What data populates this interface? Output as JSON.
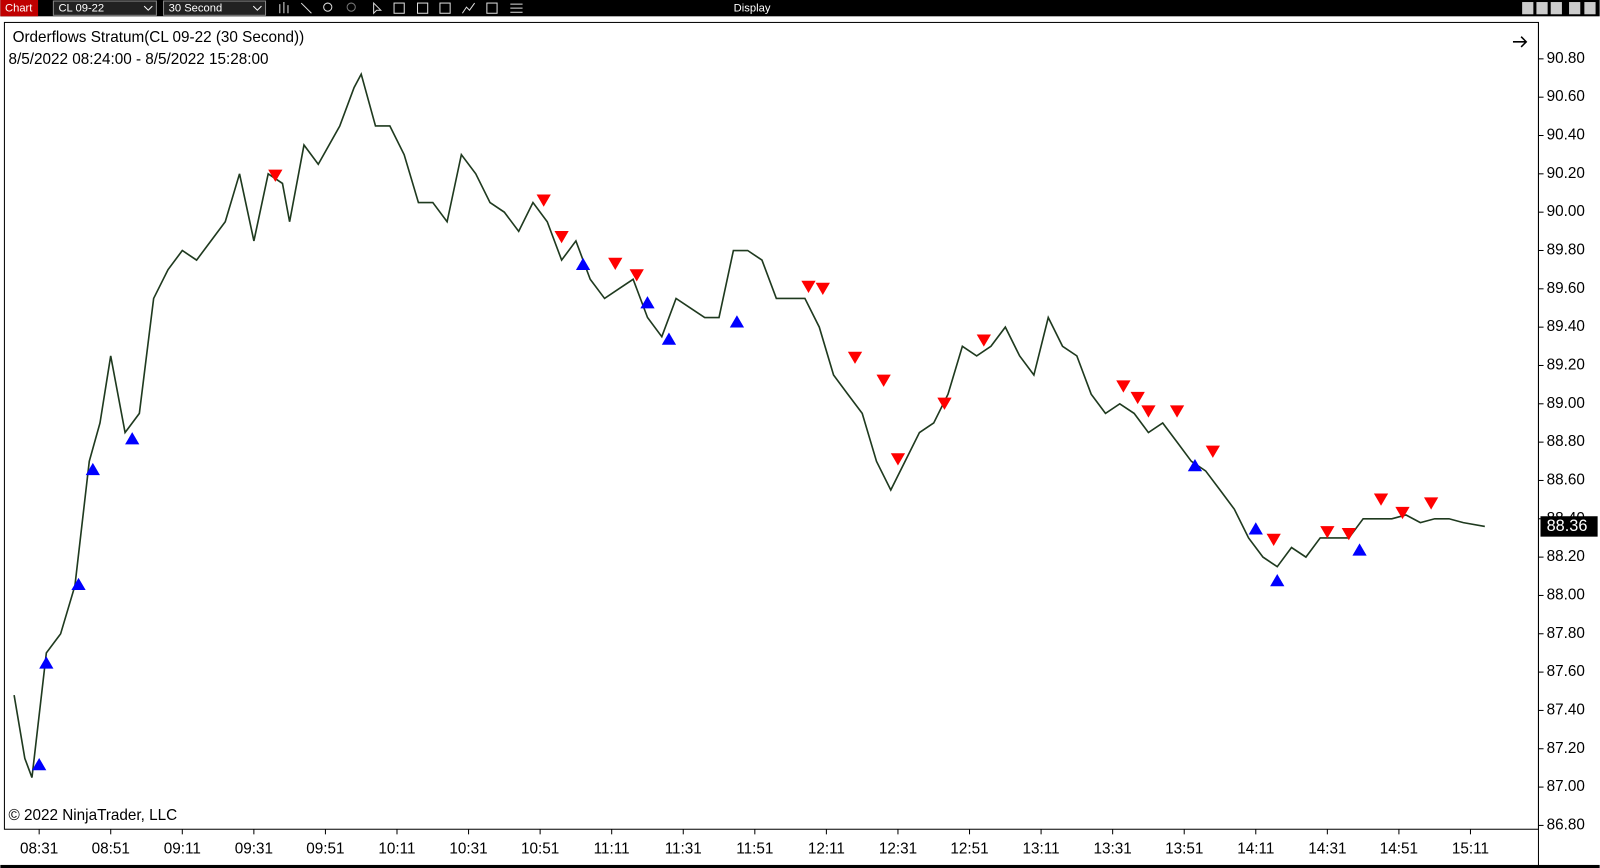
{
  "window": {
    "app_label": "Chart",
    "instrument": "CL 09-22",
    "interval": "30 Second",
    "menu": "Display"
  },
  "chart_data": {
    "type": "line",
    "title": "Orderflows Stratum(CL 09-22 (30 Second))",
    "subtitle": "8/5/2022 08:24:00 - 8/5/2022 15:28:00",
    "annotation": "© 2022 NinjaTrader, LLC",
    "color": "#1f3a1f",
    "x": [
      "08:24",
      "08:27",
      "08:29",
      "08:33",
      "08:37",
      "08:41",
      "08:45",
      "08:48",
      "08:51",
      "08:55",
      "08:59",
      "09:03",
      "09:07",
      "09:11",
      "09:15",
      "09:19",
      "09:23",
      "09:27",
      "09:31",
      "09:35",
      "09:39",
      "09:41",
      "09:45",
      "09:49",
      "09:55",
      "09:59",
      "10:01",
      "10:05",
      "10:09",
      "10:13",
      "10:17",
      "10:21",
      "10:25",
      "10:29",
      "10:33",
      "10:37",
      "10:41",
      "10:45",
      "10:49",
      "10:53",
      "10:57",
      "11:01",
      "11:05",
      "11:09",
      "11:13",
      "11:17",
      "11:21",
      "11:25",
      "11:29",
      "11:33",
      "11:37",
      "11:41",
      "11:45",
      "11:49",
      "11:53",
      "11:57",
      "12:01",
      "12:05",
      "12:09",
      "12:13",
      "12:17",
      "12:21",
      "12:25",
      "12:29",
      "12:33",
      "12:37",
      "12:41",
      "12:45",
      "12:49",
      "12:53",
      "12:57",
      "13:01",
      "13:05",
      "13:09",
      "13:13",
      "13:17",
      "13:21",
      "13:25",
      "13:29",
      "13:33",
      "13:37",
      "13:41",
      "13:45",
      "13:49",
      "13:53",
      "13:57",
      "14:01",
      "14:05",
      "14:09",
      "14:13",
      "14:17",
      "14:21",
      "14:25",
      "14:29",
      "14:33",
      "14:37",
      "14:41",
      "14:45",
      "14:49",
      "14:53",
      "14:57",
      "15:01",
      "15:05",
      "15:09",
      "15:15"
    ],
    "values": [
      87.48,
      87.15,
      87.05,
      87.7,
      87.8,
      88.05,
      88.7,
      88.9,
      89.25,
      88.85,
      88.95,
      89.55,
      89.7,
      89.8,
      89.75,
      89.85,
      89.95,
      90.2,
      89.85,
      90.2,
      90.15,
      89.95,
      90.35,
      90.25,
      90.45,
      90.65,
      90.72,
      90.45,
      90.45,
      90.3,
      90.05,
      90.05,
      89.95,
      90.3,
      90.2,
      90.05,
      90.0,
      89.9,
      90.05,
      89.95,
      89.75,
      89.85,
      89.65,
      89.55,
      89.6,
      89.65,
      89.45,
      89.35,
      89.55,
      89.5,
      89.45,
      89.45,
      89.8,
      89.8,
      89.75,
      89.55,
      89.55,
      89.55,
      89.4,
      89.15,
      89.05,
      88.95,
      88.7,
      88.55,
      88.7,
      88.85,
      88.9,
      89.05,
      89.3,
      89.25,
      89.3,
      89.4,
      89.25,
      89.15,
      89.45,
      89.3,
      89.25,
      89.05,
      88.95,
      89.0,
      88.95,
      88.85,
      88.9,
      88.8,
      88.7,
      88.65,
      88.55,
      88.45,
      88.3,
      88.2,
      88.15,
      88.25,
      88.2,
      88.3,
      88.3,
      88.3,
      88.4,
      88.4,
      88.4,
      88.42,
      88.38,
      88.4,
      88.4,
      88.38,
      88.36
    ],
    "buy_signals": {
      "color": "#0000ff",
      "x": [
        "08:31",
        "08:33",
        "08:42",
        "08:46",
        "08:57",
        "11:03",
        "11:21",
        "11:27",
        "11:46",
        "13:54",
        "14:11",
        "14:17",
        "14:40"
      ],
      "values": [
        87.12,
        87.65,
        88.06,
        88.66,
        88.82,
        89.73,
        89.53,
        89.34,
        89.43,
        88.68,
        88.35,
        88.08,
        88.24
      ]
    },
    "sell_signals": {
      "color": "#ff0000",
      "x": [
        "09:37",
        "10:52",
        "10:57",
        "11:12",
        "11:18",
        "12:06",
        "12:10",
        "12:19",
        "12:27",
        "12:31",
        "12:44",
        "12:55",
        "13:34",
        "13:38",
        "13:41",
        "13:49",
        "13:59",
        "14:16",
        "14:31",
        "14:37",
        "14:46",
        "14:52",
        "15:00"
      ],
      "values": [
        90.19,
        90.06,
        89.87,
        89.73,
        89.67,
        89.61,
        89.6,
        89.24,
        89.12,
        88.71,
        89.0,
        89.33,
        89.09,
        89.03,
        88.96,
        88.96,
        88.75,
        88.29,
        88.33,
        88.32,
        88.5,
        88.43,
        88.48
      ]
    },
    "last_price": 88.36,
    "xlim": [
      "08:23",
      "15:30"
    ],
    "xticks": [
      "08:31",
      "08:51",
      "09:11",
      "09:31",
      "09:51",
      "10:11",
      "10:31",
      "10:51",
      "11:11",
      "11:31",
      "11:51",
      "12:11",
      "12:31",
      "12:51",
      "13:11",
      "13:31",
      "13:51",
      "14:11",
      "14:31",
      "14:51",
      "15:11"
    ],
    "ylim": [
      86.78,
      90.99
    ],
    "yticks": [
      {
        "value": 86.8,
        "label": "86.80"
      },
      {
        "value": 87,
        "label": "87.00"
      },
      {
        "value": 87.2,
        "label": "87.20"
      },
      {
        "value": 87.4,
        "label": "87.40"
      },
      {
        "value": 87.6,
        "label": "87.60"
      },
      {
        "value": 87.8,
        "label": "87.80"
      },
      {
        "value": 88,
        "label": "88.00"
      },
      {
        "value": 88.2,
        "label": "88.20"
      },
      {
        "value": 88.4,
        "label": "88.40"
      },
      {
        "value": 88.6,
        "label": "88.60"
      },
      {
        "value": 88.8,
        "label": "88.80"
      },
      {
        "value": 89,
        "label": "89.00"
      },
      {
        "value": 89.2,
        "label": "89.20"
      },
      {
        "value": 89.4,
        "label": "89.40"
      },
      {
        "value": 89.6,
        "label": "89.60"
      },
      {
        "value": 89.8,
        "label": "89.80"
      },
      {
        "value": 90,
        "label": "90.00"
      },
      {
        "value": 90.2,
        "label": "90.20"
      },
      {
        "value": 90.4,
        "label": "90.40"
      },
      {
        "value": 90.6,
        "label": "90.60"
      },
      {
        "value": 90.8,
        "label": "90.80"
      }
    ],
    "grid": false
  }
}
